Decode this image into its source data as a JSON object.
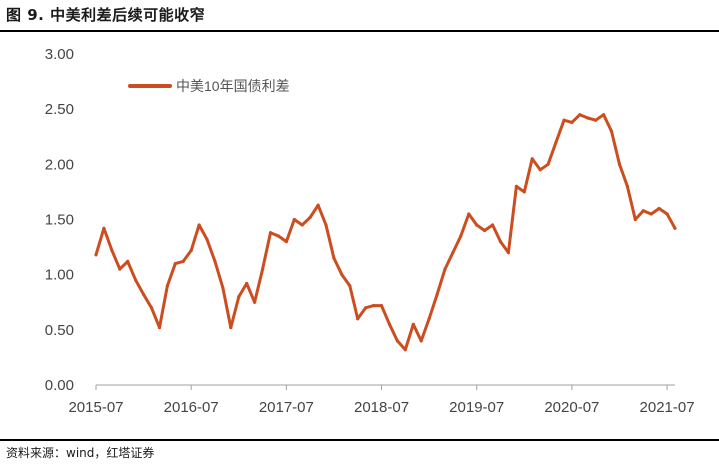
{
  "figure": {
    "title": "图 9. 中美利差后续可能收窄",
    "source": "资料来源：wind，红塔证券"
  },
  "chart_data": {
    "type": "line",
    "title": "",
    "xlabel": "",
    "ylabel": "",
    "ylim": [
      0,
      3
    ],
    "yticks": [
      "0.00",
      "0.50",
      "1.00",
      "1.50",
      "2.00",
      "2.50",
      "3.00"
    ],
    "xticks": [
      "2015-07",
      "2016-07",
      "2017-07",
      "2018-07",
      "2019-07",
      "2020-07",
      "2021-07"
    ],
    "xlim": [
      "2015-07",
      "2021-08"
    ],
    "grid": false,
    "legend": "top-left",
    "series": [
      {
        "name": "中美10年国债利差",
        "color": "#cc4d1f",
        "points": [
          [
            "2015-07",
            1.18
          ],
          [
            "2015-08",
            1.42
          ],
          [
            "2015-09",
            1.22
          ],
          [
            "2015-10",
            1.05
          ],
          [
            "2015-11",
            1.12
          ],
          [
            "2015-12",
            0.95
          ],
          [
            "2016-01",
            0.82
          ],
          [
            "2016-02",
            0.7
          ],
          [
            "2016-03",
            0.52
          ],
          [
            "2016-04",
            0.9
          ],
          [
            "2016-05",
            1.1
          ],
          [
            "2016-06",
            1.12
          ],
          [
            "2016-07",
            1.22
          ],
          [
            "2016-08",
            1.45
          ],
          [
            "2016-09",
            1.32
          ],
          [
            "2016-10",
            1.12
          ],
          [
            "2016-11",
            0.88
          ],
          [
            "2016-12",
            0.52
          ],
          [
            "2017-01",
            0.8
          ],
          [
            "2017-02",
            0.92
          ],
          [
            "2017-03",
            0.75
          ],
          [
            "2017-04",
            1.05
          ],
          [
            "2017-05",
            1.38
          ],
          [
            "2017-06",
            1.35
          ],
          [
            "2017-07",
            1.3
          ],
          [
            "2017-08",
            1.5
          ],
          [
            "2017-09",
            1.45
          ],
          [
            "2017-10",
            1.52
          ],
          [
            "2017-11",
            1.63
          ],
          [
            "2017-12",
            1.45
          ],
          [
            "2018-01",
            1.15
          ],
          [
            "2018-02",
            1.0
          ],
          [
            "2018-03",
            0.9
          ],
          [
            "2018-04",
            0.6
          ],
          [
            "2018-05",
            0.7
          ],
          [
            "2018-06",
            0.72
          ],
          [
            "2018-07",
            0.72
          ],
          [
            "2018-08",
            0.55
          ],
          [
            "2018-09",
            0.4
          ],
          [
            "2018-10",
            0.32
          ],
          [
            "2018-11",
            0.55
          ],
          [
            "2018-12",
            0.4
          ],
          [
            "2019-01",
            0.6
          ],
          [
            "2019-02",
            0.82
          ],
          [
            "2019-03",
            1.05
          ],
          [
            "2019-04",
            1.2
          ],
          [
            "2019-05",
            1.35
          ],
          [
            "2019-06",
            1.55
          ],
          [
            "2019-07",
            1.45
          ],
          [
            "2019-08",
            1.4
          ],
          [
            "2019-09",
            1.45
          ],
          [
            "2019-10",
            1.3
          ],
          [
            "2019-11",
            1.2
          ],
          [
            "2019-12",
            1.8
          ],
          [
            "2020-01",
            1.75
          ],
          [
            "2020-02",
            2.05
          ],
          [
            "2020-03",
            1.95
          ],
          [
            "2020-04",
            2.0
          ],
          [
            "2020-05",
            2.2
          ],
          [
            "2020-06",
            2.4
          ],
          [
            "2020-07",
            2.38
          ],
          [
            "2020-08",
            2.45
          ],
          [
            "2020-09",
            2.42
          ],
          [
            "2020-10",
            2.4
          ],
          [
            "2020-11",
            2.45
          ],
          [
            "2020-12",
            2.3
          ],
          [
            "2021-01",
            2.0
          ],
          [
            "2021-02",
            1.8
          ],
          [
            "2021-03",
            1.5
          ],
          [
            "2021-04",
            1.58
          ],
          [
            "2021-05",
            1.55
          ],
          [
            "2021-06",
            1.6
          ],
          [
            "2021-07",
            1.55
          ],
          [
            "2021-08",
            1.42
          ]
        ]
      }
    ]
  }
}
